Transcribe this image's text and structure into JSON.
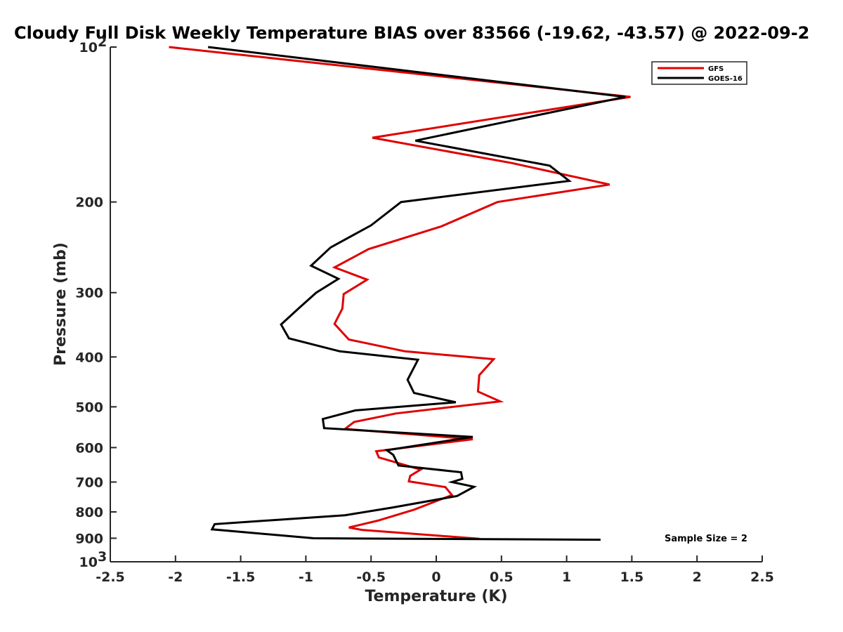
{
  "chart_data": {
    "type": "line",
    "title": "Cloudy Full Disk Weekly Temperature BIAS over 83566 (-19.62, -43.57) @ 2022-09-2",
    "xlabel": "Temperature (K)",
    "ylabel": "Pressure (mb)",
    "xlim": [
      -2.5,
      2.5
    ],
    "ylim": [
      100,
      1000
    ],
    "y_scale": "log",
    "y_reversed": true,
    "x_ticks": [
      "-2.5",
      "-2",
      "-1.5",
      "-1",
      "-0.5",
      "0",
      "0.5",
      "1",
      "1.5",
      "2",
      "2.5"
    ],
    "y_ticks": [
      {
        "value": 100,
        "base": "10",
        "exp": "2"
      },
      {
        "value": 200,
        "label": "200"
      },
      {
        "value": 300,
        "label": "300"
      },
      {
        "value": 400,
        "label": "400"
      },
      {
        "value": 500,
        "label": "500"
      },
      {
        "value": 600,
        "label": "600"
      },
      {
        "value": 700,
        "label": "700"
      },
      {
        "value": 800,
        "label": "800"
      },
      {
        "value": 900,
        "label": "900"
      },
      {
        "value": 1000,
        "base": "10",
        "exp": "3"
      }
    ],
    "grid": false,
    "legend_position": "top-right",
    "annotation": "Sample Size = 2",
    "series": [
      {
        "name": "GFS",
        "color": "#e00000",
        "x": [
          -2.05,
          1.49,
          -0.49,
          0.58,
          1.33,
          0.47,
          0.04,
          -0.52,
          -0.78,
          -0.53,
          -0.71,
          -0.72,
          -0.78,
          -0.67,
          -0.24,
          0.44,
          0.33,
          0.32,
          0.49,
          -0.31,
          -0.63,
          -0.7,
          0.28,
          -0.46,
          -0.44,
          -0.12,
          -0.2,
          -0.21,
          0.07,
          0.12,
          -0.17,
          -0.45,
          -0.67,
          -0.57,
          0.33
        ],
        "y": [
          100,
          125,
          150,
          168,
          185,
          200,
          223,
          247,
          268,
          283,
          302,
          322,
          345,
          370,
          390,
          404,
          434,
          467,
          488,
          515,
          535,
          552,
          578,
          610,
          627,
          662,
          681,
          698,
          716,
          742,
          792,
          832,
          858,
          867,
          902
        ]
      },
      {
        "name": "GOES-16",
        "color": "#000000",
        "x": [
          -1.75,
          1.45,
          -0.16,
          0.87,
          1.02,
          -0.27,
          -0.5,
          -0.81,
          -0.96,
          -0.75,
          -0.92,
          -1.05,
          -1.19,
          -1.13,
          -0.74,
          -0.14,
          -0.22,
          -0.17,
          0.15,
          -0.62,
          -0.87,
          -0.86,
          0.28,
          -0.38,
          -0.33,
          -0.29,
          0.19,
          0.2,
          0.12,
          0.29,
          0.16,
          -0.34,
          -0.7,
          -1.7,
          -1.72,
          -0.94,
          1.26
        ],
        "y": [
          100,
          125,
          152,
          170,
          182,
          200,
          222,
          245,
          266,
          282,
          300,
          321,
          346,
          368,
          390,
          405,
          443,
          470,
          490,
          508,
          528,
          550,
          572,
          607,
          620,
          650,
          670,
          690,
          700,
          715,
          745,
          785,
          812,
          845,
          865,
          900,
          906
        ]
      }
    ]
  }
}
